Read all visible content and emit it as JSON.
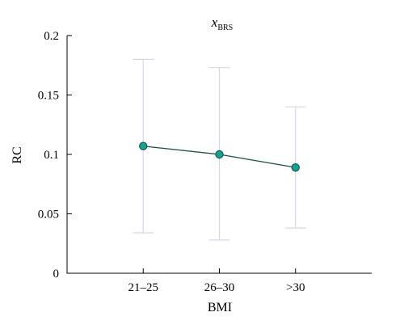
{
  "chart_data": {
    "type": "line",
    "title": "x",
    "title_subscript": "BRS",
    "xlabel": "BMI",
    "ylabel": "RC",
    "categories": [
      "21–25",
      "26–30",
      ">30"
    ],
    "ylim": [
      0,
      0.2
    ],
    "yticks": [
      0,
      0.05,
      0.1,
      0.15,
      0.2
    ],
    "ytick_labels": [
      "0",
      "0.05",
      "0.1",
      "0.15",
      "0.2"
    ],
    "series": [
      {
        "values": [
          0.107,
          0.1,
          0.089
        ],
        "err_low": [
          0.034,
          0.028,
          0.038
        ],
        "err_high": [
          0.18,
          0.173,
          0.14
        ]
      }
    ],
    "grid": false,
    "legend": "none"
  },
  "colors": {
    "line": "#1c4f4a",
    "marker_fill": "#1aa090",
    "marker_edge": "#0f5a52",
    "error_bar": "#d6d6ea"
  }
}
